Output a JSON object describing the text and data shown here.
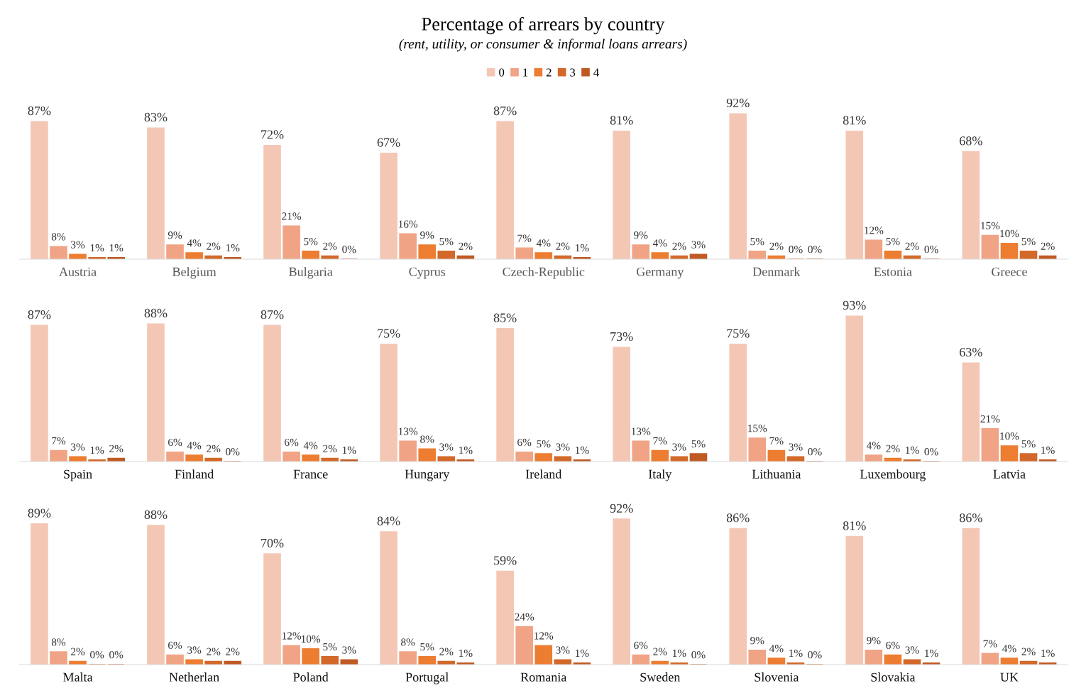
{
  "chart_data": [
    {
      "type": "bar",
      "title": "Percentage of arrears by country",
      "subtitle": "(rent, utility, or consumer & informal loans arrears)",
      "legend": "top",
      "grid": false,
      "categories": [
        "Austria",
        "Belgium",
        "Bulgaria",
        "Cyprus",
        "Czech-Republic",
        "Germany",
        "Denmark",
        "Estonia",
        "Greece"
      ],
      "series": [
        {
          "name": "0",
          "color": "#f4c7b5",
          "values": [
            87,
            83,
            72,
            67,
            87,
            81,
            92,
            81,
            68
          ],
          "value_labels": [
            "87%",
            "83%",
            "72%",
            "67%",
            "87%",
            "81%",
            "92%",
            "81%",
            "68%"
          ]
        },
        {
          "name": "1",
          "color": "#f0a485",
          "values": [
            8,
            9,
            21,
            16,
            7,
            9,
            5,
            12,
            15
          ],
          "value_labels": [
            "8%",
            "9%",
            "21%",
            "16%",
            "7%",
            "9%",
            "5%",
            "12%",
            "15%"
          ]
        },
        {
          "name": "2",
          "color": "#ed7d31",
          "values": [
            3,
            4,
            5,
            9,
            4,
            4,
            2,
            5,
            10
          ],
          "value_labels": [
            "3%",
            "4%",
            "5%",
            "9%",
            "4%",
            "4%",
            "2%",
            "5%",
            "10%"
          ]
        },
        {
          "name": "3",
          "color": "#d2692a",
          "values": [
            1,
            2,
            2,
            5,
            2,
            2,
            0,
            2,
            5
          ],
          "value_labels": [
            "1%",
            "2%",
            "2%",
            "5%",
            "2%",
            "2%",
            "0%",
            "2%",
            "5%"
          ]
        },
        {
          "name": "4",
          "color": "#c05a23",
          "values": [
            1,
            1,
            0,
            2,
            1,
            3,
            0,
            0,
            2
          ],
          "value_labels": [
            "1%",
            "1%",
            "0%",
            "2%",
            "1%",
            "3%",
            "0%",
            "0%",
            "2%"
          ]
        }
      ]
    },
    {
      "type": "bar",
      "legend": false,
      "grid": false,
      "categories": [
        "Spain",
        "Finland",
        "France",
        "Hungary",
        "Ireland",
        "Italy",
        "Lithuania",
        "Luxembourg",
        "Latvia"
      ],
      "series": [
        {
          "color": "#f4c7b5",
          "values": [
            87,
            88,
            87,
            75,
            85,
            73,
            75,
            93,
            63
          ],
          "value_labels": [
            "87%",
            "88%",
            "87%",
            "75%",
            "85%",
            "73%",
            "75%",
            "93%",
            "63%"
          ]
        },
        {
          "color": "#f0a485",
          "values": [
            7,
            6,
            6,
            13,
            6,
            13,
            15,
            4,
            21
          ],
          "value_labels": [
            "7%",
            "6%",
            "6%",
            "13%",
            "6%",
            "13%",
            "15%",
            "4%",
            "21%"
          ]
        },
        {
          "color": "#ed7d31",
          "values": [
            3,
            4,
            4,
            8,
            5,
            7,
            7,
            2,
            10
          ],
          "value_labels": [
            "3%",
            "4%",
            "4%",
            "8%",
            "5%",
            "7%",
            "7%",
            "2%",
            "10%"
          ]
        },
        {
          "color": "#d2692a",
          "values": [
            1,
            2,
            2,
            3,
            3,
            3,
            3,
            1,
            5
          ],
          "value_labels": [
            "1%",
            "2%",
            "2%",
            "3%",
            "3%",
            "3%",
            "3%",
            "1%",
            "5%"
          ]
        },
        {
          "color": "#c05a23",
          "values": [
            2,
            0,
            1,
            1,
            1,
            5,
            0,
            0,
            1
          ],
          "value_labels": [
            "2%",
            "0%",
            "1%",
            "1%",
            "1%",
            "5%",
            "0%",
            "0%",
            "1%"
          ]
        }
      ]
    },
    {
      "type": "bar",
      "legend": false,
      "grid": false,
      "categories": [
        "Malta",
        "Netherlan",
        "Poland",
        "Portugal",
        "Romania",
        "Sweden",
        "Slovenia",
        "Slovakia",
        "UK"
      ],
      "series": [
        {
          "color": "#f4c7b5",
          "values": [
            89,
            88,
            70,
            84,
            59,
            92,
            86,
            81,
            86
          ],
          "value_labels": [
            "89%",
            "88%",
            "70%",
            "84%",
            "59%",
            "92%",
            "86%",
            "81%",
            "86%"
          ]
        },
        {
          "color": "#f0a485",
          "values": [
            8,
            6,
            12,
            8,
            24,
            6,
            9,
            9,
            7
          ],
          "value_labels": [
            "8%",
            "6%",
            "12%",
            "8%",
            "24%",
            "6%",
            "9%",
            "9%",
            "7%"
          ]
        },
        {
          "color": "#ed7d31",
          "values": [
            2,
            3,
            10,
            5,
            12,
            2,
            4,
            6,
            4
          ],
          "value_labels": [
            "2%",
            "3%",
            "10%",
            "5%",
            "12%",
            "2%",
            "4%",
            "6%",
            "4%"
          ]
        },
        {
          "color": "#d2692a",
          "values": [
            0,
            2,
            5,
            2,
            3,
            1,
            1,
            3,
            2
          ],
          "value_labels": [
            "0%",
            "2%",
            "5%",
            "2%",
            "3%",
            "1%",
            "1%",
            "3%",
            "2%"
          ]
        },
        {
          "color": "#c05a23",
          "values": [
            0,
            2,
            3,
            1,
            1,
            0,
            0,
            1,
            1
          ],
          "value_labels": [
            "0%",
            "2%",
            "3%",
            "1%",
            "1%",
            "0%",
            "0%",
            "1%",
            "1%"
          ]
        }
      ]
    }
  ]
}
